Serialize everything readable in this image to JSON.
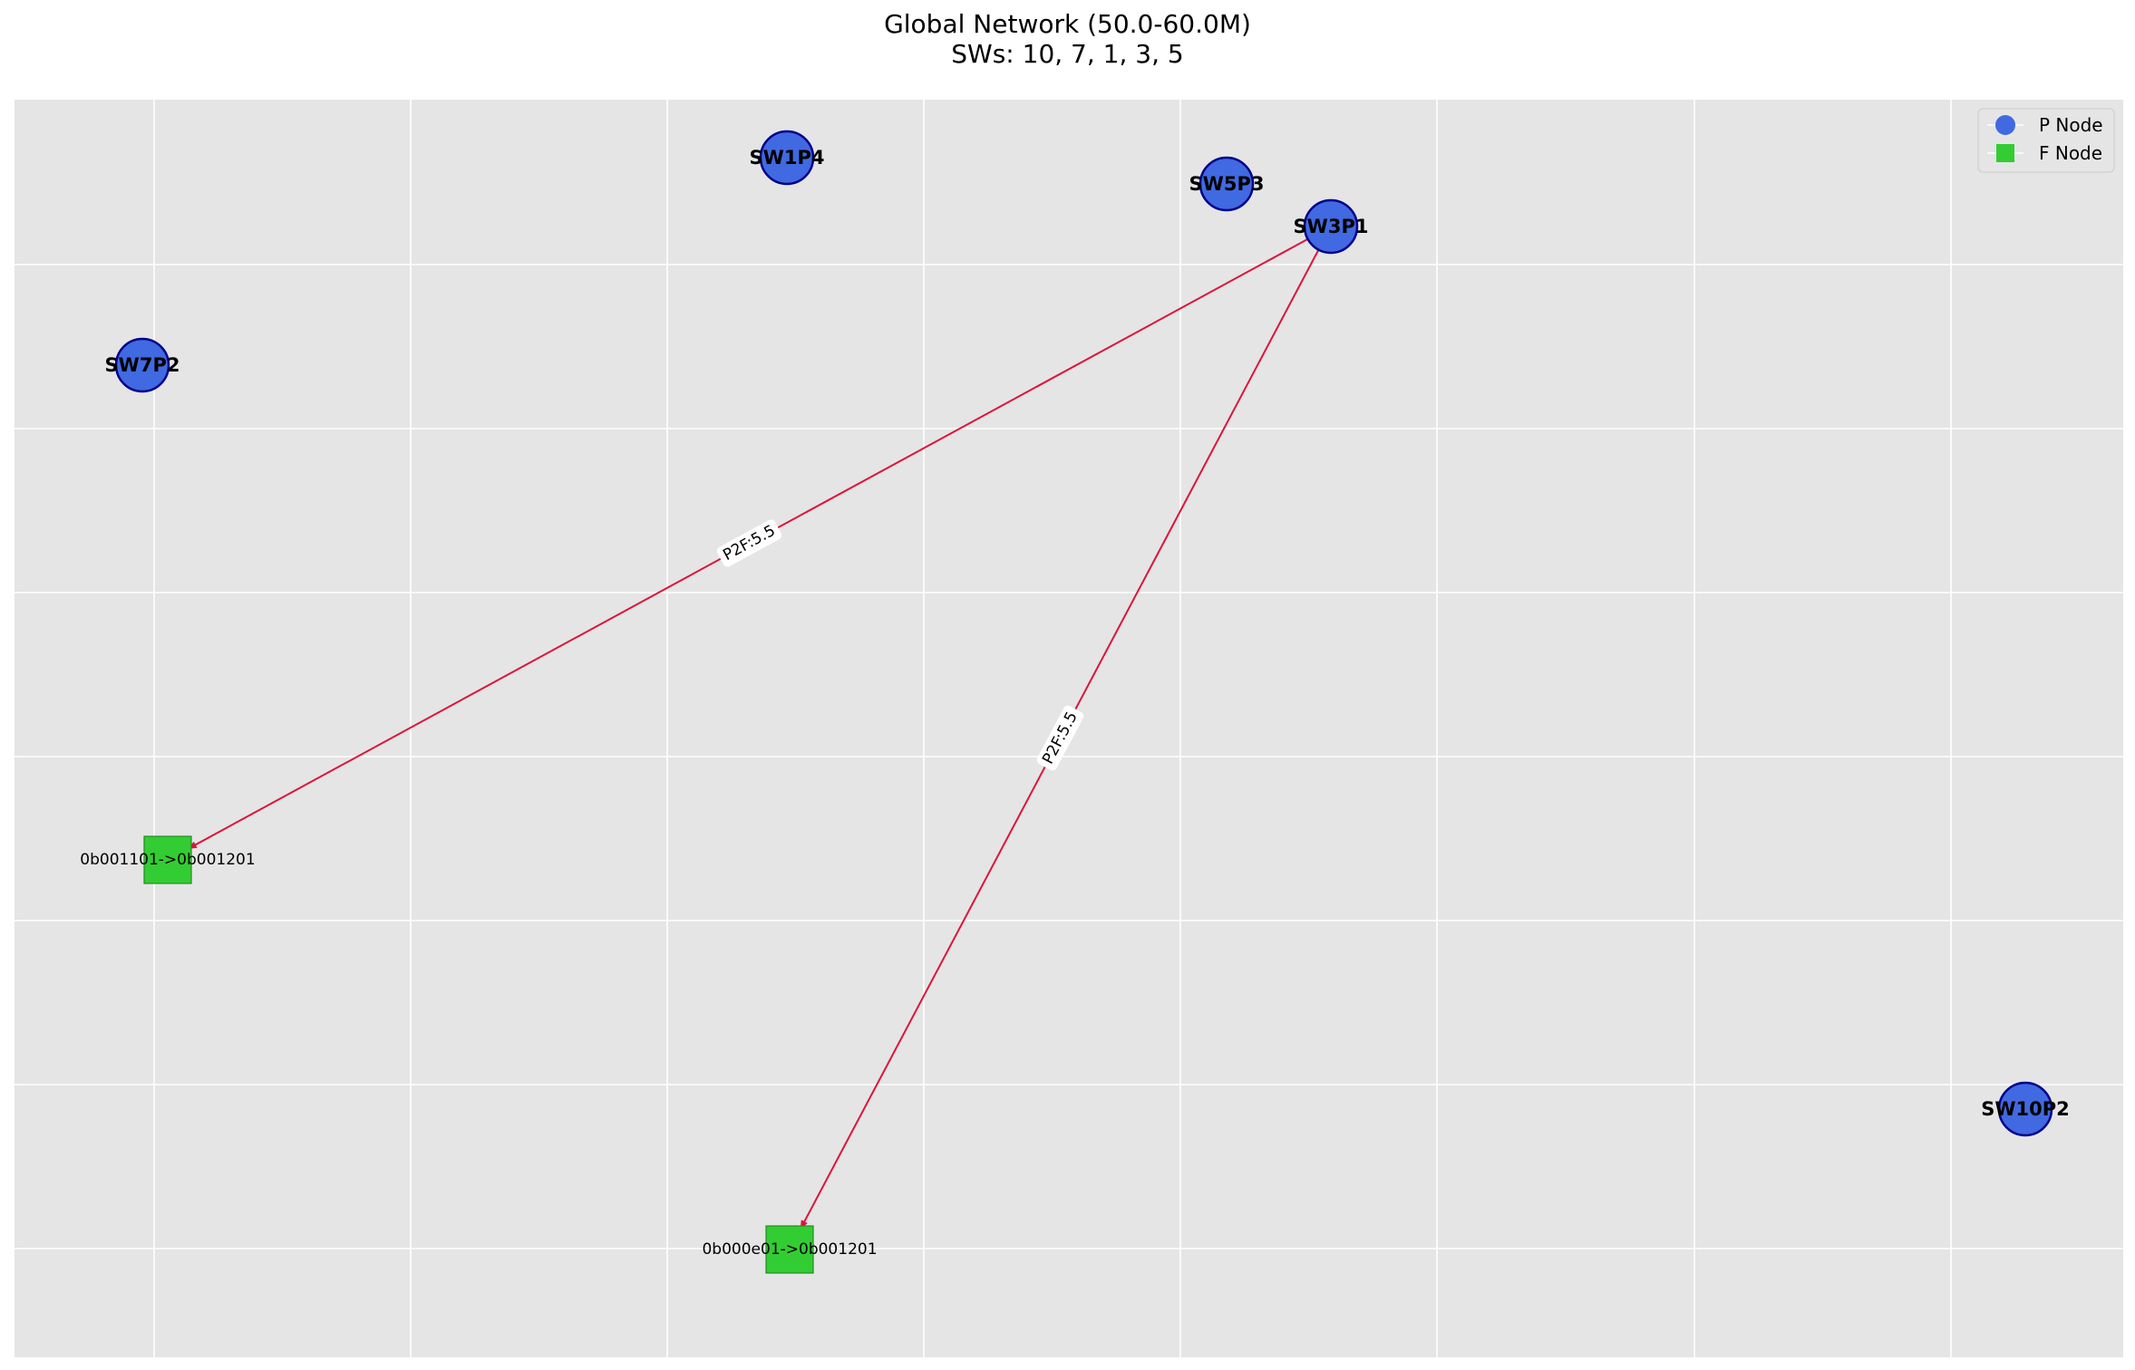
{
  "title": {
    "line1": "Global Network (50.0-60.0M)",
    "line2": "SWs: 10, 7, 1, 3, 5"
  },
  "colors": {
    "background": "#e5e5e5",
    "grid": "#ffffff",
    "p_node_fill": "#4169e1",
    "p_node_stroke": "#00008b",
    "f_node_fill": "#32cd32",
    "f_node_stroke": "#228b22",
    "edge": "#dc143c"
  },
  "legend": {
    "items": [
      {
        "label": "P Node",
        "shape": "circle",
        "color": "#4169e1"
      },
      {
        "label": "F Node",
        "shape": "square",
        "color": "#32cd32"
      }
    ]
  },
  "nodes": [
    {
      "id": "SW1P4",
      "label": "SW1P4",
      "type": "P"
    },
    {
      "id": "SW5P3",
      "label": "SW5P3",
      "type": "P"
    },
    {
      "id": "SW3P1",
      "label": "SW3P1",
      "type": "P"
    },
    {
      "id": "SW7P2",
      "label": "SW7P2",
      "type": "P"
    },
    {
      "id": "SW10P2",
      "label": "SW10P2",
      "type": "P"
    },
    {
      "id": "F1",
      "label": "0b001101->0b001201",
      "type": "F"
    },
    {
      "id": "F2",
      "label": "0b000e01->0b001201",
      "type": "F"
    }
  ],
  "edges": [
    {
      "from": "SW3P1",
      "to": "F1",
      "label": "P2F:5.5"
    },
    {
      "from": "SW3P1",
      "to": "F2",
      "label": "P2F:5.5"
    }
  ]
}
